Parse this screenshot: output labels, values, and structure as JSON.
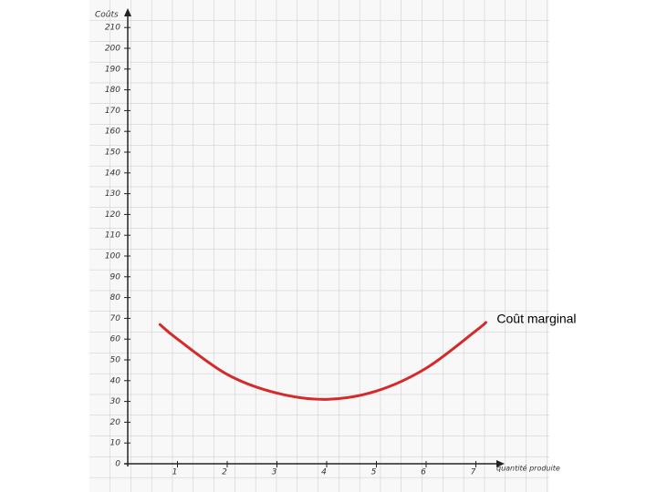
{
  "chart_data": {
    "type": "line",
    "y_label": "Coûts",
    "x_label": "quantité produite",
    "x": [
      0.65,
      1,
      2,
      3,
      4,
      5,
      6,
      7,
      7.2
    ],
    "series": [
      {
        "name": "Coût marginal",
        "color": "#d42a2a",
        "values": [
          67,
          60,
          43,
          34,
          31,
          35,
          46,
          64,
          68
        ]
      }
    ],
    "xlim": [
      0,
      7.5
    ],
    "xticks": [
      1,
      2,
      3,
      4,
      5,
      6,
      7
    ],
    "ylim": [
      0,
      220
    ],
    "yticks": [
      0,
      10,
      20,
      30,
      40,
      50,
      60,
      70,
      80,
      90,
      100,
      110,
      120,
      130,
      140,
      150,
      160,
      170,
      180,
      190,
      200,
      210
    ]
  }
}
